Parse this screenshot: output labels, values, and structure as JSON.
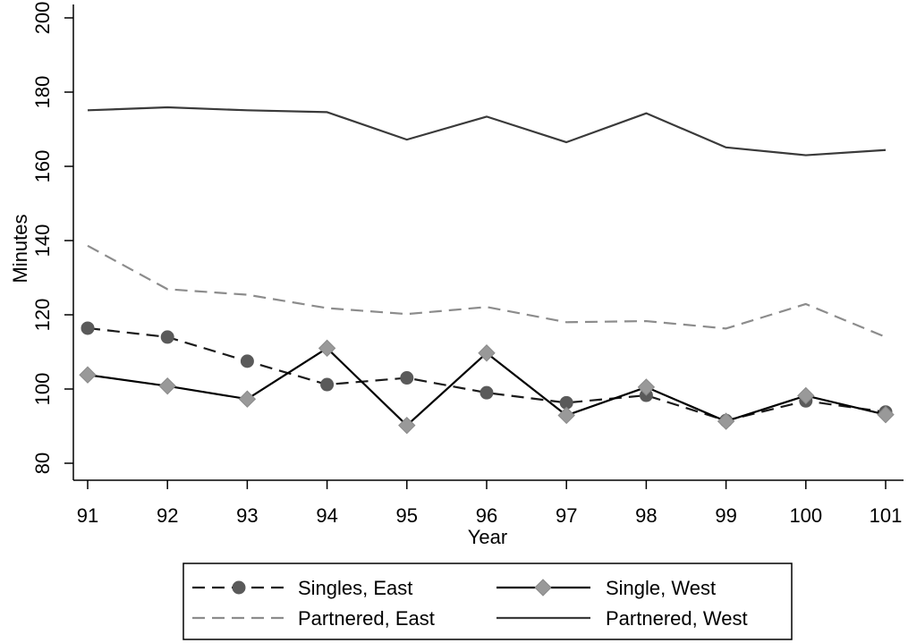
{
  "chart_data": {
    "type": "line",
    "title": "",
    "xlabel": "Year",
    "ylabel": "Minutes",
    "x": [
      91,
      92,
      93,
      94,
      95,
      96,
      97,
      98,
      99,
      100,
      101
    ],
    "xlim": [
      91,
      101
    ],
    "ylim": [
      80,
      200
    ],
    "yticks": [
      80,
      100,
      120,
      140,
      160,
      180,
      200
    ],
    "xtick_labels": [
      "91",
      "92",
      "93",
      "94",
      "95",
      "96",
      "97",
      "98",
      "99",
      "100",
      "101"
    ],
    "ytick_labels": [
      "80",
      "100",
      "120",
      "140",
      "160",
      "180",
      "200"
    ],
    "grid": false,
    "legend_position": "bottom",
    "series": [
      {
        "name": "Singles, East",
        "values": [
          116.4,
          114.0,
          107.5,
          101.2,
          103.0,
          99.0,
          96.3,
          98.3,
          91.5,
          96.8,
          93.8
        ],
        "color": "#1a1a1a",
        "dash": "dashed",
        "marker": "circle",
        "marker_color": "#5a5a5a"
      },
      {
        "name": "Single, West",
        "values": [
          103.8,
          100.8,
          97.3,
          111.0,
          90.2,
          109.7,
          92.9,
          100.5,
          91.3,
          98.2,
          93.1
        ],
        "color": "#000000",
        "dash": "solid",
        "marker": "diamond",
        "marker_color": "#999999"
      },
      {
        "name": "Partnered, East",
        "values": [
          138.6,
          126.9,
          125.4,
          121.8,
          120.2,
          122.1,
          118.0,
          118.3,
          116.3,
          122.9,
          114.0
        ],
        "color": "#8c8c8c",
        "dash": "dashed",
        "marker": "none"
      },
      {
        "name": "Partnered, West",
        "values": [
          175.1,
          175.9,
          175.1,
          174.6,
          167.2,
          173.4,
          166.5,
          174.3,
          165.1,
          163.0,
          164.4
        ],
        "color": "#3a3a3a",
        "dash": "solid",
        "marker": "none"
      }
    ]
  }
}
